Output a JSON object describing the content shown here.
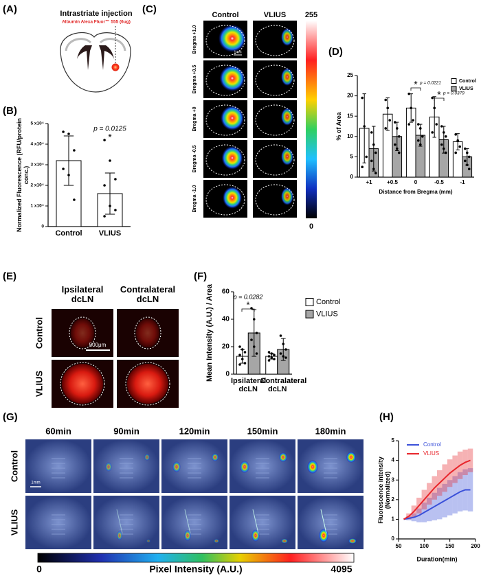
{
  "panel_labels": [
    "(A)",
    "(B)",
    "(C)",
    "(D)",
    "(E)",
    "(F)",
    "(G)",
    "(H)"
  ],
  "injection": {
    "title": "Intrastriate injection",
    "agent": "Albumin Alexa Fluor™ 555 (6ug)"
  },
  "brain_images": {
    "columns": [
      "Control",
      "VLIUS"
    ],
    "rows": [
      "Bregma +1.0",
      "Bregma +0.5",
      "Bregma +0",
      "Bregma -0.5",
      "Bregma -1.0"
    ],
    "scale": "1mm",
    "colorbar": {
      "max": 255,
      "min": 0
    }
  },
  "lymph_images": {
    "columns": [
      "Ipsilateral dcLN",
      "Contralateral dcLN"
    ],
    "rows": [
      "Control",
      "VLIUS"
    ],
    "scale": "500μm"
  },
  "time_images": {
    "columns": [
      "60min",
      "90min",
      "120min",
      "150min",
      "180min"
    ],
    "rows": [
      "Control",
      "VLIUS"
    ],
    "scale": "1mm",
    "colorbar": {
      "min": 0,
      "label": "Pixel Intensity (A.U.)",
      "max": 4095
    }
  },
  "chart_data": [
    {
      "type": "bar",
      "ylabel": "Normalized Fluorescence (RFU/protein conc.)",
      "categories": [
        "Control",
        "VLIUS"
      ],
      "values": [
        32000,
        16000
      ],
      "errors": [
        12000,
        10000
      ],
      "points": [
        [
          46000,
          45000,
          37000,
          28000,
          25000,
          13000
        ],
        [
          42000,
          32000,
          23000,
          20000,
          10000,
          8000,
          5000
        ]
      ],
      "color": "#ffffff",
      "ylim": [
        0,
        50000
      ],
      "yticks": [
        0,
        {
          "value": 10000,
          "label": "1 x10⁴"
        },
        {
          "value": 20000,
          "label": "2 x10⁴"
        },
        {
          "value": 30000,
          "label": "3 x10⁴"
        },
        {
          "value": 40000,
          "label": "4 x10⁴"
        },
        {
          "value": 50000,
          "label": "5 x10⁴"
        }
      ],
      "annotations": [
        "p = 0.0125",
        "*"
      ]
    },
    {
      "type": "bar",
      "ylabel": "% of Area",
      "xlabel": "Distance from Bregma (mm)",
      "categories": [
        "+1",
        "+0.5",
        "0",
        "-0.5",
        "-1"
      ],
      "series": [
        {
          "name": "Control",
          "color": "#ffffff",
          "values": [
            12,
            15.5,
            17,
            14.8,
            8.7
          ],
          "errors": [
            8.5,
            4,
            3.5,
            5,
            2
          ],
          "points": [
            [
              19.5,
              12.5,
              5,
              2.5
            ],
            [
              19,
              17,
              14,
              12
            ],
            [
              20.5,
              17,
              14,
              13
            ],
            [
              19.5,
              17,
              13,
              11
            ],
            [
              10.5,
              9,
              7.5,
              6
            ]
          ]
        },
        {
          "name": "VLIUS",
          "color": "#a6a6a6",
          "values": [
            7,
            10,
            10.3,
            9.2,
            5
          ],
          "errors": [
            5.5,
            3.5,
            2.7,
            3.3,
            2
          ],
          "points": [
            [
              11,
              8,
              6,
              4,
              2,
              1
            ],
            [
              13.5,
              12,
              10,
              8,
              7,
              6
            ],
            [
              13,
              12,
              10,
              9,
              8
            ],
            [
              12.5,
              11,
              10,
              8,
              7,
              6
            ],
            [
              7,
              6,
              5,
              4,
              3,
              2
            ]
          ]
        }
      ],
      "ylim": [
        0,
        25
      ],
      "yticks": [
        0,
        5,
        10,
        15,
        20,
        25
      ],
      "legend": "upper right",
      "annotations": [
        "*",
        "p = 0.0221",
        "*",
        "p = 0.0379"
      ]
    },
    {
      "type": "bar",
      "ylabel": "Mean Intensity (A.U.) / Area",
      "categories": [
        "Ipsilateral dcLN",
        "Contralateral dcLN"
      ],
      "series": [
        {
          "name": "Control",
          "color": "#ffffff",
          "values": [
            13,
            13
          ],
          "errors": [
            5,
            2
          ],
          "points": [
            [
              20,
              18,
              16,
              14,
              11,
              8,
              7
            ],
            [
              16,
              15,
              14,
              13,
              12,
              11,
              10
            ]
          ]
        },
        {
          "name": "VLIUS",
          "color": "#a6a6a6",
          "values": [
            30,
            18
          ],
          "errors": [
            17,
            8
          ],
          "points": [
            [
              48,
              40,
              30,
              25,
              20,
              15
            ],
            [
              28,
              22,
              18,
              15,
              13,
              12
            ]
          ]
        }
      ],
      "ylim": [
        0,
        60
      ],
      "yticks": [
        0,
        20,
        40,
        60
      ],
      "legend": "right",
      "annotations": [
        "p = 0.0282",
        "*"
      ]
    },
    {
      "type": "line",
      "xlabel": "Duration(min)",
      "ylabel": "Fluorescence intensity (Normalized)",
      "x": [
        60,
        70,
        80,
        90,
        100,
        110,
        120,
        130,
        140,
        150,
        160,
        170,
        180,
        190
      ],
      "series": [
        {
          "name": "Control",
          "color": "#3a50d9",
          "values": [
            1,
            1.05,
            1.1,
            1.2,
            1.35,
            1.5,
            1.65,
            1.8,
            1.95,
            2.1,
            2.25,
            2.4,
            2.5,
            2.5
          ],
          "errors": [
            0,
            0.1,
            0.2,
            0.35,
            0.5,
            0.6,
            0.7,
            0.8,
            0.85,
            0.9,
            0.95,
            1.0,
            1.05,
            1.1
          ]
        },
        {
          "name": "VLIUS",
          "color": "#e8262c",
          "values": [
            1,
            1.15,
            1.4,
            1.7,
            2.0,
            2.3,
            2.6,
            2.85,
            3.1,
            3.35,
            3.55,
            3.75,
            3.9,
            4.0
          ],
          "errors": [
            0,
            0.15,
            0.3,
            0.4,
            0.5,
            0.55,
            0.6,
            0.65,
            0.7,
            0.7,
            0.7,
            0.7,
            0.65,
            0.6
          ]
        }
      ],
      "xlim": [
        50,
        200
      ],
      "xticks": [
        50,
        100,
        150,
        200
      ],
      "ylim": [
        0,
        5
      ],
      "yticks": [
        0,
        1,
        2,
        3,
        4,
        5
      ],
      "legend": "upper left"
    }
  ]
}
